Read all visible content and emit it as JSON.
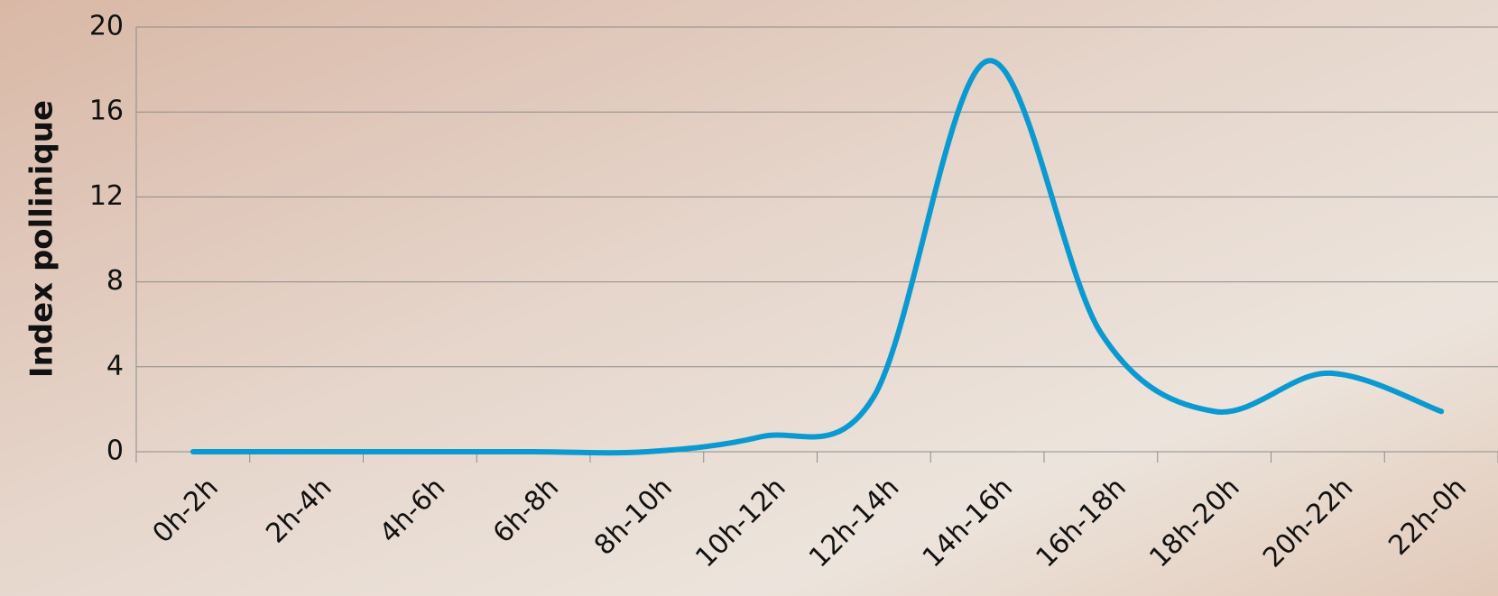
{
  "chart_data": {
    "type": "line",
    "y_label": "Index pollinique",
    "categories": [
      "0h-2h",
      "2h-4h",
      "4h-6h",
      "6h-8h",
      "8h-10h",
      "10h-12h",
      "12h-14h",
      "14h-16h",
      "16h-18h",
      "18h-20h",
      "20h-22h",
      "22h-0h"
    ],
    "series": [
      {
        "name": "Index pollinique",
        "color": "#0a9ad1",
        "values": [
          0,
          0,
          0,
          0,
          0,
          0.7,
          2.6,
          18.4,
          5.6,
          1.9,
          3.7,
          1.9
        ]
      }
    ],
    "ylim": [
      0,
      20
    ],
    "yticks": [
      0,
      4,
      8,
      12,
      16,
      20
    ],
    "grid": true,
    "smooth": true
  }
}
